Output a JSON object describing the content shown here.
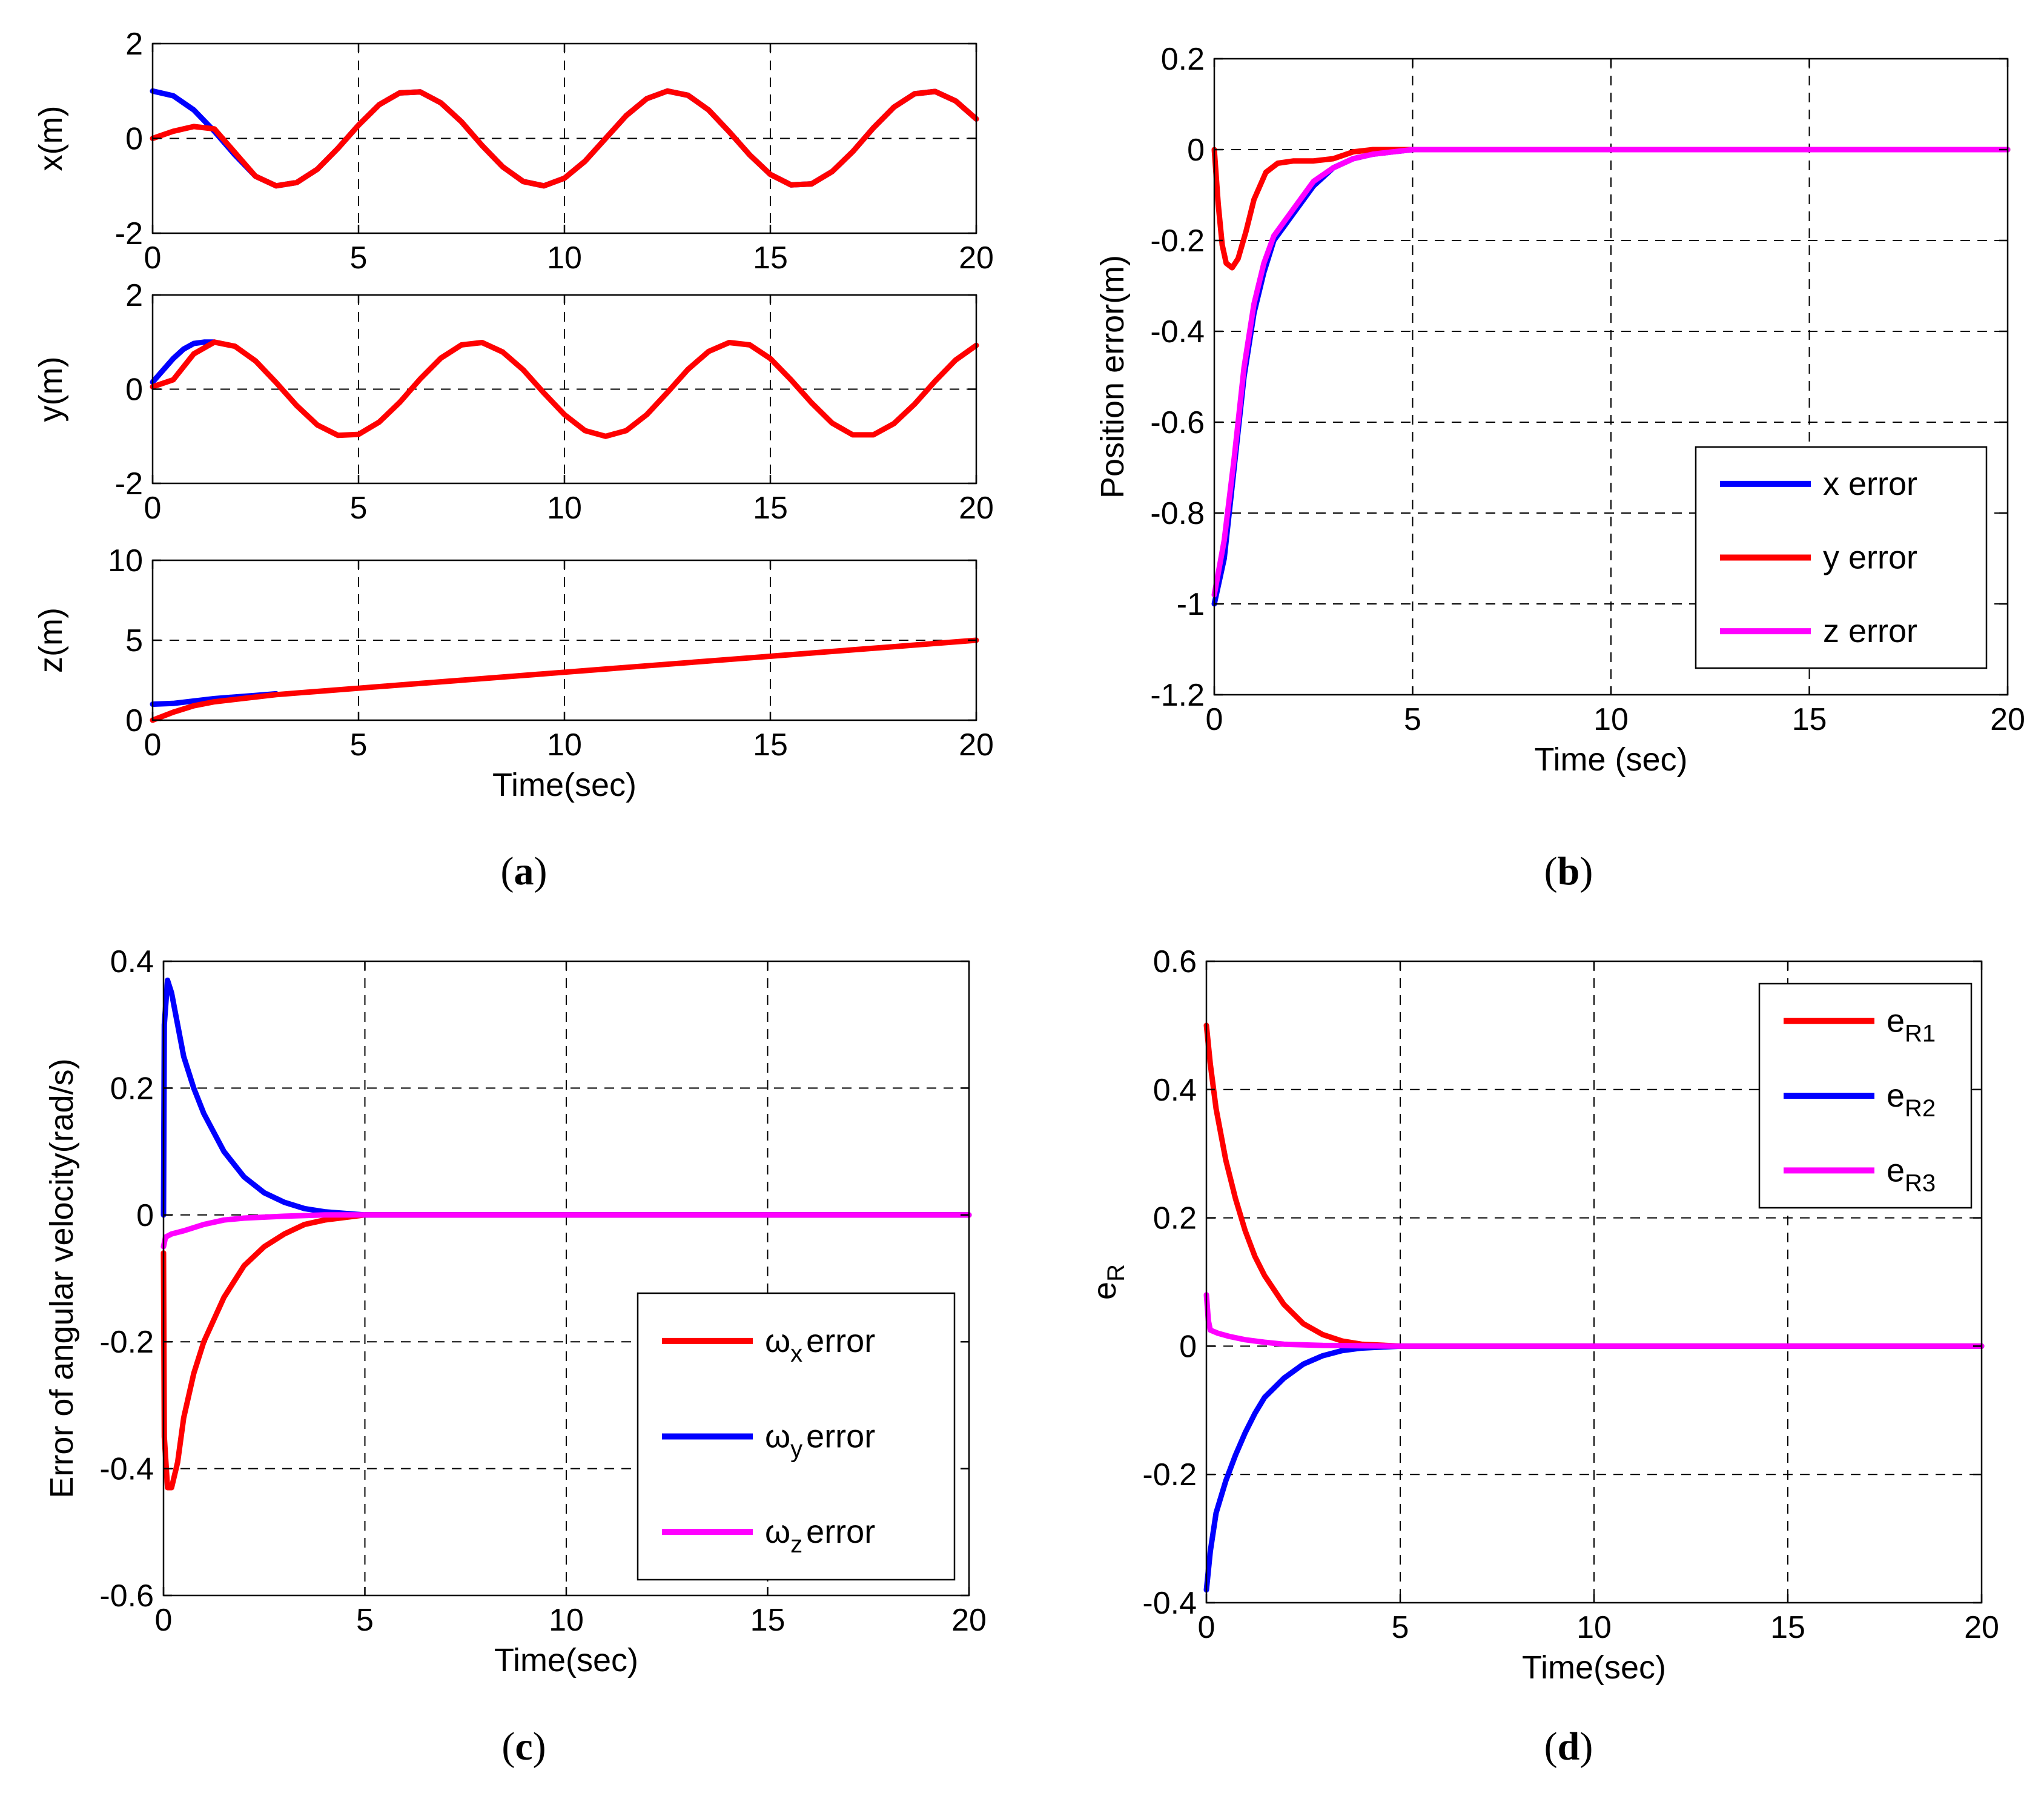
{
  "colors": {
    "blue": "#0000ff",
    "red": "#ff0000",
    "magenta": "#ff00ff"
  },
  "panel_labels": [
    "a",
    "b",
    "c",
    "d"
  ],
  "chart_data": [
    {
      "id": "a-x",
      "type": "line",
      "ylabel": "x(m)",
      "xlabel": "",
      "xlim": [
        0,
        20
      ],
      "ylim": [
        -2,
        2
      ],
      "xticks": [
        0,
        5,
        10,
        15,
        20
      ],
      "yticks": [
        -2,
        0,
        2
      ],
      "grid": true,
      "legend": null,
      "series": [
        {
          "color": "blue",
          "x": [
            0,
            0.5,
            1,
            1.5,
            2,
            2.5,
            3,
            3.5,
            4,
            4.5,
            5,
            5.5,
            6,
            6.5,
            7,
            7.5,
            8,
            8.5,
            9,
            9.5,
            10,
            10.5,
            11,
            11.5,
            12,
            12.5,
            13,
            13.5,
            14,
            14.5,
            15,
            15.5,
            16,
            16.5,
            17,
            17.5,
            18,
            18.5,
            19,
            19.5,
            20
          ],
          "y": [
            1.0,
            0.9,
            0.6,
            0.15,
            -0.35,
            -0.8,
            -1.0,
            -0.93,
            -0.65,
            -0.21,
            0.28,
            0.71,
            0.96,
            0.98,
            0.75,
            0.35,
            -0.15,
            -0.6,
            -0.91,
            -1.0,
            -0.84,
            -0.48,
            0.0,
            0.48,
            0.84,
            1.0,
            0.91,
            0.6,
            0.14,
            -0.35,
            -0.76,
            -0.98,
            -0.96,
            -0.7,
            -0.28,
            0.22,
            0.66,
            0.94,
            0.99,
            0.79,
            0.41
          ]
        },
        {
          "color": "red",
          "x": [
            0,
            0.5,
            1,
            1.5,
            2,
            2.5,
            3,
            3.5,
            4,
            4.5,
            5,
            5.5,
            6,
            6.5,
            7,
            7.5,
            8,
            8.5,
            9,
            9.5,
            10,
            10.5,
            11,
            11.5,
            12,
            12.5,
            13,
            13.5,
            14,
            14.5,
            15,
            15.5,
            16,
            16.5,
            17,
            17.5,
            18,
            18.5,
            19,
            19.5,
            20
          ],
          "y": [
            0.0,
            0.15,
            0.25,
            0.2,
            -0.3,
            -0.8,
            -1.0,
            -0.93,
            -0.65,
            -0.21,
            0.28,
            0.71,
            0.96,
            0.98,
            0.75,
            0.35,
            -0.15,
            -0.6,
            -0.91,
            -1.0,
            -0.84,
            -0.48,
            0.0,
            0.48,
            0.84,
            1.0,
            0.91,
            0.6,
            0.14,
            -0.35,
            -0.76,
            -0.98,
            -0.96,
            -0.7,
            -0.28,
            0.22,
            0.66,
            0.94,
            0.99,
            0.79,
            0.41
          ]
        }
      ]
    },
    {
      "id": "a-y",
      "type": "line",
      "ylabel": "y(m)",
      "xlabel": "",
      "xlim": [
        0,
        20
      ],
      "ylim": [
        -2,
        2
      ],
      "xticks": [
        0,
        5,
        10,
        15,
        20
      ],
      "yticks": [
        -2,
        0,
        2
      ],
      "grid": true,
      "legend": null,
      "series": [
        {
          "color": "blue",
          "x": [
            0,
            0.25,
            0.5,
            0.75,
            1,
            1.25,
            1.5
          ],
          "y": [
            0.15,
            0.4,
            0.65,
            0.85,
            0.97,
            1.0,
            1.0
          ]
        },
        {
          "color": "red",
          "x": [
            0,
            0.5,
            1,
            1.5,
            2,
            2.5,
            3,
            3.5,
            4,
            4.5,
            5,
            5.5,
            6,
            6.5,
            7,
            7.5,
            8,
            8.5,
            9,
            9.5,
            10,
            10.5,
            11,
            11.5,
            12,
            12.5,
            13,
            13.5,
            14,
            14.5,
            15,
            15.5,
            16,
            16.5,
            17,
            17.5,
            18,
            18.5,
            19,
            19.5,
            20
          ],
          "y": [
            0.05,
            0.2,
            0.75,
            1.0,
            0.91,
            0.6,
            0.14,
            -0.35,
            -0.76,
            -0.98,
            -0.96,
            -0.7,
            -0.28,
            0.22,
            0.66,
            0.94,
            0.99,
            0.79,
            0.41,
            -0.08,
            -0.54,
            -0.88,
            -1.0,
            -0.88,
            -0.54,
            -0.07,
            0.42,
            0.8,
            0.99,
            0.94,
            0.65,
            0.2,
            -0.29,
            -0.72,
            -0.97,
            -0.97,
            -0.73,
            -0.32,
            0.17,
            0.62,
            0.93
          ]
        }
      ]
    },
    {
      "id": "a-z",
      "type": "line",
      "ylabel": "z(m)",
      "xlabel": "Time(sec)",
      "xlim": [
        0,
        20
      ],
      "ylim": [
        0,
        10
      ],
      "xticks": [
        0,
        5,
        10,
        15,
        20
      ],
      "yticks": [
        0,
        5,
        10
      ],
      "grid": true,
      "legend": null,
      "series": [
        {
          "color": "blue",
          "x": [
            0,
            0.5,
            1,
            1.5,
            2,
            2.5,
            3
          ],
          "y": [
            1.0,
            1.05,
            1.2,
            1.35,
            1.45,
            1.55,
            1.65
          ]
        },
        {
          "color": "red",
          "x": [
            0,
            0.5,
            1,
            1.5,
            2,
            3,
            4,
            5,
            6,
            8,
            10,
            12,
            14,
            16,
            18,
            20
          ],
          "y": [
            0.0,
            0.5,
            0.9,
            1.15,
            1.3,
            1.6,
            1.8,
            2.0,
            2.2,
            2.6,
            3.0,
            3.4,
            3.8,
            4.2,
            4.6,
            5.0
          ]
        }
      ]
    },
    {
      "id": "b",
      "type": "line",
      "ylabel": "Position error(m)",
      "xlabel": "Time (sec)",
      "xlim": [
        0,
        20
      ],
      "ylim": [
        -1.2,
        0.2
      ],
      "xticks": [
        0,
        5,
        10,
        15,
        20
      ],
      "yticks": [
        -1.2,
        -1,
        -0.8,
        -0.6,
        -0.4,
        -0.2,
        0,
        0.2
      ],
      "ytick_labels": [
        "-1.2",
        "-1",
        "-0.8",
        "-0.6",
        "-0.4",
        "-0.2",
        "0",
        "0.2"
      ],
      "grid": true,
      "legend": "center-right",
      "series": [
        {
          "name": "x error",
          "color": "blue",
          "x": [
            0,
            0.25,
            0.5,
            0.75,
            1,
            1.25,
            1.5,
            2,
            2.5,
            3,
            3.5,
            4,
            4.5,
            5,
            20
          ],
          "y": [
            -1.0,
            -0.9,
            -0.7,
            -0.5,
            -0.36,
            -0.27,
            -0.2,
            -0.14,
            -0.08,
            -0.04,
            -0.02,
            -0.01,
            -0.005,
            0.0,
            0.0
          ]
        },
        {
          "name": "y error",
          "color": "red",
          "x": [
            0,
            0.1,
            0.2,
            0.3,
            0.45,
            0.6,
            0.8,
            1.0,
            1.3,
            1.6,
            2,
            2.5,
            3,
            3.5,
            4,
            20
          ],
          "y": [
            0.0,
            -0.12,
            -0.21,
            -0.25,
            -0.26,
            -0.24,
            -0.18,
            -0.11,
            -0.05,
            -0.03,
            -0.025,
            -0.025,
            -0.02,
            -0.005,
            0.0,
            0.0
          ]
        },
        {
          "name": "z error",
          "color": "magenta",
          "x": [
            0,
            0.25,
            0.5,
            0.75,
            1,
            1.25,
            1.5,
            2,
            2.5,
            3,
            3.5,
            4,
            4.5,
            5,
            20
          ],
          "y": [
            -0.98,
            -0.86,
            -0.68,
            -0.48,
            -0.34,
            -0.25,
            -0.19,
            -0.13,
            -0.07,
            -0.04,
            -0.02,
            -0.01,
            -0.005,
            0.0,
            0.0
          ]
        }
      ]
    },
    {
      "id": "c",
      "type": "line",
      "ylabel": "Error of angular velocity(rad/s)",
      "xlabel": "Time(sec)",
      "xlim": [
        0,
        20
      ],
      "ylim": [
        -0.6,
        0.4
      ],
      "xticks": [
        0,
        5,
        10,
        15,
        20
      ],
      "yticks": [
        -0.6,
        -0.4,
        -0.2,
        0,
        0.2,
        0.4
      ],
      "grid": true,
      "legend": "center-right",
      "series": [
        {
          "name": "error",
          "symbol": "ω",
          "sub": "x",
          "color": "red",
          "x": [
            0,
            0.02,
            0.1,
            0.2,
            0.35,
            0.5,
            0.75,
            1,
            1.5,
            2,
            2.5,
            3,
            3.5,
            4,
            5,
            20
          ],
          "y": [
            -0.06,
            -0.35,
            -0.43,
            -0.43,
            -0.39,
            -0.32,
            -0.25,
            -0.2,
            -0.13,
            -0.08,
            -0.05,
            -0.03,
            -0.015,
            -0.008,
            0.0,
            0.0
          ]
        },
        {
          "name": "error",
          "symbol": "ω",
          "sub": "y",
          "color": "blue",
          "x": [
            0,
            0.02,
            0.1,
            0.2,
            0.35,
            0.5,
            0.75,
            1,
            1.5,
            2,
            2.5,
            3,
            3.5,
            4,
            5,
            20
          ],
          "y": [
            0.0,
            0.3,
            0.37,
            0.35,
            0.3,
            0.25,
            0.2,
            0.16,
            0.1,
            0.06,
            0.035,
            0.02,
            0.01,
            0.005,
            0.0,
            0.0
          ]
        },
        {
          "name": "error",
          "symbol": "ω",
          "sub": "z",
          "color": "magenta",
          "x": [
            0,
            0.05,
            0.2,
            0.5,
            1,
            1.5,
            2,
            3,
            4,
            5,
            20
          ],
          "y": [
            -0.05,
            -0.035,
            -0.03,
            -0.025,
            -0.015,
            -0.008,
            -0.005,
            -0.002,
            0.0,
            0.0,
            0.0
          ]
        }
      ]
    },
    {
      "id": "d",
      "type": "line",
      "ylabel": "e",
      "ylabel_sub": "R",
      "xlabel": "Time(sec)",
      "xlim": [
        0,
        20
      ],
      "ylim": [
        -0.4,
        0.6
      ],
      "xticks": [
        0,
        5,
        10,
        15,
        20
      ],
      "yticks": [
        -0.4,
        -0.2,
        0,
        0.2,
        0.4,
        0.6
      ],
      "grid": true,
      "legend": "top-right",
      "series": [
        {
          "name": "e",
          "sub": "R1",
          "color": "red",
          "x": [
            0,
            0.1,
            0.25,
            0.5,
            0.75,
            1,
            1.25,
            1.5,
            2,
            2.5,
            3,
            3.5,
            4,
            5,
            20
          ],
          "y": [
            0.5,
            0.44,
            0.37,
            0.29,
            0.23,
            0.18,
            0.14,
            0.11,
            0.065,
            0.035,
            0.018,
            0.008,
            0.003,
            0.0,
            0.0
          ]
        },
        {
          "name": "e",
          "sub": "R2",
          "color": "blue",
          "x": [
            0,
            0.1,
            0.25,
            0.5,
            0.75,
            1,
            1.25,
            1.5,
            2,
            2.5,
            3,
            3.5,
            4,
            5,
            20
          ],
          "y": [
            -0.38,
            -0.32,
            -0.26,
            -0.21,
            -0.17,
            -0.135,
            -0.105,
            -0.08,
            -0.05,
            -0.028,
            -0.015,
            -0.007,
            -0.003,
            0.0,
            0.0
          ]
        },
        {
          "name": "e",
          "sub": "R3",
          "color": "magenta",
          "x": [
            0,
            0.05,
            0.1,
            0.3,
            0.6,
            1,
            1.5,
            2,
            3,
            5,
            20
          ],
          "y": [
            0.08,
            0.04,
            0.025,
            0.02,
            0.015,
            0.01,
            0.006,
            0.003,
            0.001,
            0.0,
            0.0
          ]
        }
      ]
    }
  ]
}
